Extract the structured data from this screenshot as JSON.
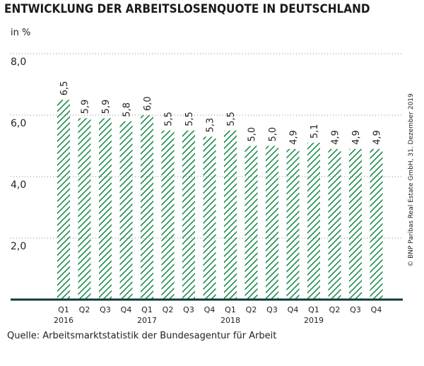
{
  "chart_data": {
    "type": "bar",
    "title": "ENTWICKLUNG DER ARBEITSLOSENQUOTE IN DEUTSCHLAND",
    "subtitle": "in %",
    "categories": [
      "Q1",
      "Q2",
      "Q3",
      "Q4",
      "Q1",
      "Q2",
      "Q3",
      "Q4",
      "Q1",
      "Q2",
      "Q3",
      "Q4",
      "Q1",
      "Q2",
      "Q3",
      "Q4"
    ],
    "years": [
      "2016",
      null,
      null,
      null,
      "2017",
      null,
      null,
      null,
      "2018",
      null,
      null,
      null,
      "2019",
      null,
      null,
      null
    ],
    "values": [
      6.5,
      5.9,
      5.9,
      5.8,
      6.0,
      5.5,
      5.5,
      5.3,
      5.5,
      5.0,
      5.0,
      4.9,
      5.1,
      4.9,
      4.9,
      4.9
    ],
    "value_labels": [
      "6,5",
      "5,9",
      "5,9",
      "5,8",
      "6,0",
      "5,5",
      "5,5",
      "5,3",
      "5,5",
      "5,0",
      "5,0",
      "4,9",
      "5,1",
      "4,9",
      "4,9",
      "4,9"
    ],
    "color": "#1e8a4c",
    "ylim": [
      0,
      8
    ],
    "yticks": [
      {
        "value": 2,
        "label": "2,0"
      },
      {
        "value": 4,
        "label": "4,0"
      },
      {
        "value": 6,
        "label": "6,0"
      },
      {
        "value": 8,
        "label": "8,0"
      }
    ],
    "grid": true,
    "source": "Quelle: Arbeitsmarktstatistik der Bundesagentur für Arbeit",
    "copyright": "© BNP Paribas Real Estate GmbH, 31. Dezember 2019"
  }
}
